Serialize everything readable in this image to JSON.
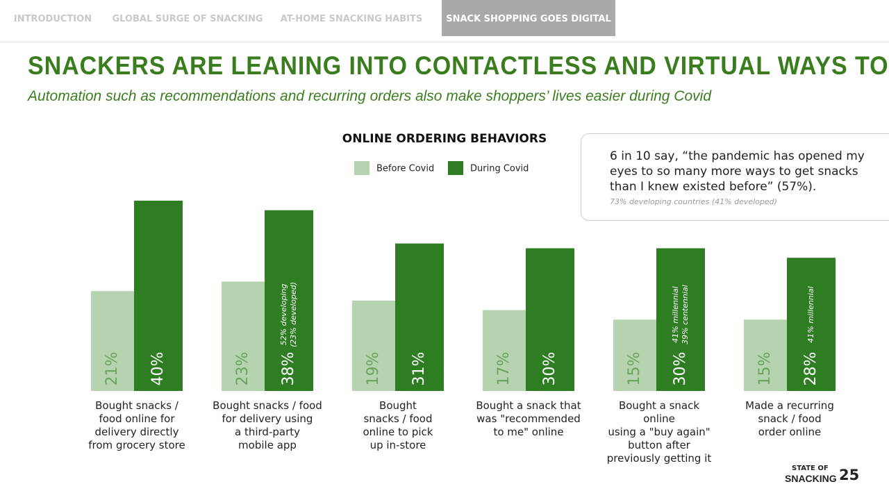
{
  "nav": [
    "INTRODUCTION",
    "GLOBAL SURGE OF SNACKING",
    "AT-HOME SNACKING HABITS",
    "SNACK SHOPPING GOES DIGITAL"
  ],
  "title": "SNACKERS ARE LEANING INTO CONTACTLESS AND VIRTUAL WAYS TO SHOP",
  "subtitle": "Automation such as recommendations and recurring orders also make shoppers’ lives easier during Covid",
  "callout": {
    "quote": "6 in 10 say, “the pandemic has opened my eyes to so many more ways to get snacks than I knew existed before” (57%).",
    "note": "73% developing countries (41% developed)"
  },
  "footer": {
    "brand_top": "STATE OF",
    "brand_bottom": "SNACKING",
    "page": "25"
  },
  "chart_data": {
    "type": "bar",
    "title": "ONLINE ORDERING BEHAVIORS",
    "categories": [
      "Bought snacks /\nfood online for\ndelivery directly\nfrom grocery store",
      "Bought snacks / food\nfor delivery using\na third-party\nmobile app",
      "Bought\nsnacks / food\nonline to pick\nup in-store",
      "Bought a snack that\nwas \"recommended\nto me\" online",
      "Bought a snack online\nusing a \"buy again\"\nbutton after\npreviously getting it",
      "Made a recurring\nsnack / food\norder online"
    ],
    "series": [
      {
        "name": "Before Covid",
        "color": "#b5d3ae",
        "values": [
          21,
          23,
          19,
          17,
          15,
          15
        ],
        "value_labels": [
          "21%",
          "23%",
          "19%",
          "17%",
          "15%",
          "15%"
        ]
      },
      {
        "name": "During Covid",
        "color": "#2e7d23",
        "values": [
          40,
          38,
          31,
          30,
          30,
          28
        ],
        "value_labels": [
          "40%",
          "38%",
          "31%",
          "30%",
          "30%",
          "28%"
        ],
        "notes": [
          null,
          [
            "52% developing",
            "(23% developed)"
          ],
          null,
          null,
          [
            "41% millennial",
            "39% centennial"
          ],
          [
            "41% millennial"
          ]
        ]
      }
    ]
  }
}
